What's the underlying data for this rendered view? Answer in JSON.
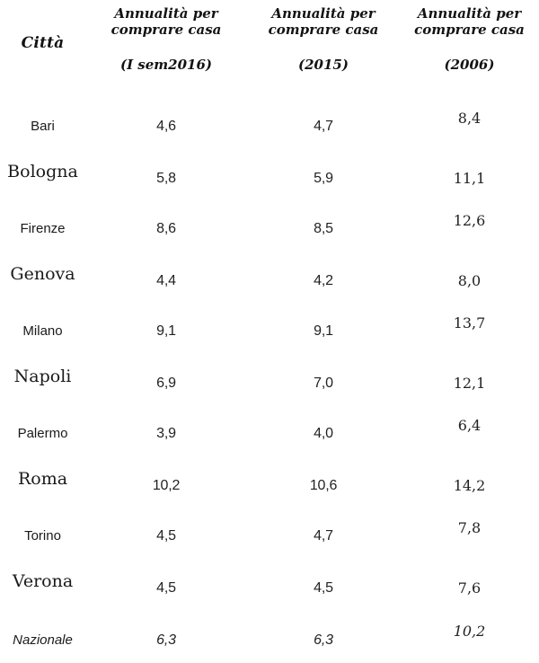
{
  "table": {
    "header": {
      "city": "Città",
      "col_sem2016": {
        "title": "Annualità per comprare casa",
        "period": "(I sem2016)"
      },
      "col_2015": {
        "title": "Annualità per comprare casa",
        "period": "(2015)"
      },
      "col_2006": {
        "title": "Annualità per comprare casa",
        "period": "(2006)"
      }
    },
    "rows": [
      {
        "city": "Bari",
        "v_sem2016": "4,6",
        "v_2015": "4,7",
        "v_2006": "8,4"
      },
      {
        "city": "Bologna",
        "v_sem2016": "5,8",
        "v_2015": "5,9",
        "v_2006": "11,1"
      },
      {
        "city": "Firenze",
        "v_sem2016": "8,6",
        "v_2015": "8,5",
        "v_2006": "12,6"
      },
      {
        "city": "Genova",
        "v_sem2016": "4,4",
        "v_2015": "4,2",
        "v_2006": "8,0"
      },
      {
        "city": "Milano",
        "v_sem2016": "9,1",
        "v_2015": "9,1",
        "v_2006": "13,7"
      },
      {
        "city": "Napoli",
        "v_sem2016": "6,9",
        "v_2015": "7,0",
        "v_2006": "12,1"
      },
      {
        "city": "Palermo",
        "v_sem2016": "3,9",
        "v_2015": "4,0",
        "v_2006": "6,4"
      },
      {
        "city": "Roma",
        "v_sem2016": "10,2",
        "v_2015": "10,6",
        "v_2006": "14,2"
      },
      {
        "city": "Torino",
        "v_sem2016": "4,5",
        "v_2015": "4,7",
        "v_2006": "7,8"
      },
      {
        "city": "Verona",
        "v_sem2016": "4,5",
        "v_2015": "4,5",
        "v_2006": "7,6"
      },
      {
        "city": "Nazionale",
        "v_sem2016": "6,3",
        "v_2015": "6,3",
        "v_2006": "10,2"
      }
    ]
  },
  "chart_data": {
    "type": "table",
    "title": "Annualità per comprare casa",
    "categories": [
      "Bari",
      "Bologna",
      "Firenze",
      "Genova",
      "Milano",
      "Napoli",
      "Palermo",
      "Roma",
      "Torino",
      "Verona",
      "Nazionale"
    ],
    "series": [
      {
        "name": "Annualità per comprare casa (I sem2016)",
        "values": [
          4.6,
          5.8,
          8.6,
          4.4,
          9.1,
          6.9,
          3.9,
          10.2,
          4.5,
          4.5,
          6.3
        ]
      },
      {
        "name": "Annualità per comprare casa (2015)",
        "values": [
          4.7,
          5.9,
          8.5,
          4.2,
          9.1,
          7.0,
          4.0,
          10.6,
          4.7,
          4.5,
          6.3
        ]
      },
      {
        "name": "Annualità per comprare casa (2006)",
        "values": [
          8.4,
          11.1,
          12.6,
          8.0,
          13.7,
          12.1,
          6.4,
          14.2,
          7.8,
          7.6,
          10.2
        ]
      }
    ],
    "layout": {
      "grid": false,
      "legend": "none",
      "decimal_separator": "comma"
    }
  }
}
